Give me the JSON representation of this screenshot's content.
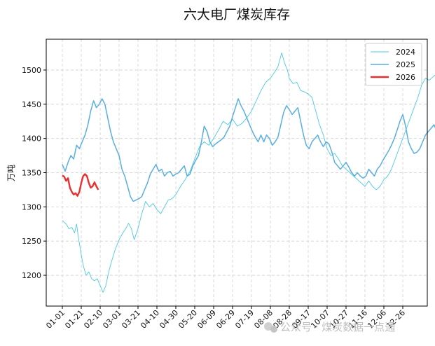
{
  "chart_data": {
    "type": "line",
    "title": "六大电厂煤炭库存",
    "xlabel": "",
    "ylabel": "万吨",
    "ylim": [
      1155,
      1545
    ],
    "yticks": [
      1200,
      1250,
      1300,
      1350,
      1400,
      1450,
      1500
    ],
    "xticks": [
      "01-01",
      "01-21",
      "02-10",
      "03-01",
      "03-21",
      "04-10",
      "04-30",
      "05-20",
      "06-09",
      "06-29",
      "07-19",
      "08-08",
      "08-28",
      "09-17",
      "10-07",
      "10-27",
      "11-16",
      "12-06",
      "12-26"
    ],
    "grid": true,
    "legend_position": "top-right",
    "series": [
      {
        "name": "2024",
        "color": "#4ec9e0",
        "points": [
          [
            0,
            1280
          ],
          [
            4,
            1275
          ],
          [
            7,
            1268
          ],
          [
            10,
            1270
          ],
          [
            13,
            1262
          ],
          [
            15,
            1275
          ],
          [
            17,
            1255
          ],
          [
            20,
            1230
          ],
          [
            22,
            1215
          ],
          [
            25,
            1200
          ],
          [
            28,
            1205
          ],
          [
            31,
            1195
          ],
          [
            34,
            1192
          ],
          [
            37,
            1195
          ],
          [
            40,
            1185
          ],
          [
            43,
            1175
          ],
          [
            46,
            1185
          ],
          [
            49,
            1205
          ],
          [
            52,
            1220
          ],
          [
            56,
            1238
          ],
          [
            60,
            1252
          ],
          [
            64,
            1262
          ],
          [
            67,
            1268
          ],
          [
            70,
            1276
          ],
          [
            73,
            1268
          ],
          [
            76,
            1252
          ],
          [
            80,
            1268
          ],
          [
            84,
            1290
          ],
          [
            88,
            1308
          ],
          [
            92,
            1300
          ],
          [
            96,
            1305
          ],
          [
            100,
            1296
          ],
          [
            104,
            1290
          ],
          [
            108,
            1300
          ],
          [
            112,
            1310
          ],
          [
            116,
            1312
          ],
          [
            120,
            1318
          ],
          [
            125,
            1330
          ],
          [
            130,
            1340
          ],
          [
            135,
            1352
          ],
          [
            140,
            1370
          ],
          [
            145,
            1388
          ],
          [
            150,
            1395
          ],
          [
            155,
            1390
          ],
          [
            160,
            1400
          ],
          [
            165,
            1412
          ],
          [
            170,
            1425
          ],
          [
            175,
            1420
          ],
          [
            180,
            1428
          ],
          [
            185,
            1418
          ],
          [
            190,
            1422
          ],
          [
            195,
            1430
          ],
          [
            200,
            1440
          ],
          [
            205,
            1455
          ],
          [
            210,
            1470
          ],
          [
            215,
            1482
          ],
          [
            220,
            1488
          ],
          [
            225,
            1498
          ],
          [
            228,
            1505
          ],
          [
            230,
            1515
          ],
          [
            232,
            1525
          ],
          [
            235,
            1510
          ],
          [
            238,
            1500
          ],
          [
            240,
            1488
          ],
          [
            244,
            1480
          ],
          [
            248,
            1482
          ],
          [
            252,
            1470
          ],
          [
            256,
            1468
          ],
          [
            260,
            1465
          ],
          [
            264,
            1460
          ],
          [
            268,
            1440
          ],
          [
            272,
            1420
          ],
          [
            276,
            1405
          ],
          [
            280,
            1385
          ],
          [
            284,
            1375
          ],
          [
            288,
            1378
          ],
          [
            292,
            1370
          ],
          [
            296,
            1360
          ],
          [
            300,
            1355
          ],
          [
            304,
            1350
          ],
          [
            308,
            1345
          ],
          [
            312,
            1340
          ],
          [
            316,
            1335
          ],
          [
            320,
            1330
          ],
          [
            324,
            1338
          ],
          [
            328,
            1330
          ],
          [
            332,
            1325
          ],
          [
            336,
            1330
          ],
          [
            340,
            1340
          ],
          [
            344,
            1345
          ],
          [
            348,
            1355
          ],
          [
            352,
            1370
          ],
          [
            356,
            1385
          ],
          [
            360,
            1400
          ],
          [
            364,
            1415
          ],
          [
            368,
            1430
          ],
          [
            372,
            1445
          ],
          [
            376,
            1460
          ],
          [
            380,
            1478
          ],
          [
            384,
            1488
          ],
          [
            388,
            1485
          ],
          [
            392,
            1490
          ],
          [
            396,
            1495
          ],
          [
            400,
            1500
          ],
          [
            404,
            1510
          ],
          [
            408,
            1500
          ],
          [
            412,
            1470
          ],
          [
            416,
            1455
          ],
          [
            420,
            1450
          ],
          [
            424,
            1445
          ],
          [
            428,
            1440
          ],
          [
            432,
            1438
          ],
          [
            436,
            1430
          ],
          [
            440,
            1425
          ],
          [
            444,
            1420
          ],
          [
            448,
            1410
          ],
          [
            452,
            1400
          ],
          [
            456,
            1395
          ],
          [
            460,
            1390
          ],
          [
            464,
            1395
          ],
          [
            468,
            1400
          ],
          [
            472,
            1385
          ],
          [
            476,
            1375
          ],
          [
            480,
            1365
          ]
        ]
      },
      {
        "name": "2025",
        "color": "#5aaee0",
        "points": [
          [
            0,
            1362
          ],
          [
            3,
            1352
          ],
          [
            6,
            1365
          ],
          [
            9,
            1375
          ],
          [
            12,
            1370
          ],
          [
            15,
            1390
          ],
          [
            18,
            1385
          ],
          [
            21,
            1395
          ],
          [
            24,
            1405
          ],
          [
            27,
            1420
          ],
          [
            30,
            1440
          ],
          [
            33,
            1455
          ],
          [
            36,
            1445
          ],
          [
            39,
            1450
          ],
          [
            42,
            1458
          ],
          [
            45,
            1450
          ],
          [
            48,
            1430
          ],
          [
            51,
            1410
          ],
          [
            54,
            1395
          ],
          [
            57,
            1385
          ],
          [
            60,
            1375
          ],
          [
            63,
            1355
          ],
          [
            66,
            1345
          ],
          [
            69,
            1330
          ],
          [
            72,
            1315
          ],
          [
            75,
            1308
          ],
          [
            78,
            1310
          ],
          [
            81,
            1312
          ],
          [
            84,
            1315
          ],
          [
            87,
            1325
          ],
          [
            90,
            1335
          ],
          [
            93,
            1348
          ],
          [
            96,
            1355
          ],
          [
            99,
            1362
          ],
          [
            102,
            1352
          ],
          [
            105,
            1355
          ],
          [
            108,
            1345
          ],
          [
            111,
            1350
          ],
          [
            114,
            1352
          ],
          [
            117,
            1345
          ],
          [
            120,
            1348
          ],
          [
            123,
            1350
          ],
          [
            126,
            1355
          ],
          [
            129,
            1360
          ],
          [
            132,
            1345
          ],
          [
            135,
            1348
          ],
          [
            138,
            1360
          ],
          [
            141,
            1368
          ],
          [
            144,
            1375
          ],
          [
            147,
            1395
          ],
          [
            150,
            1418
          ],
          [
            153,
            1410
          ],
          [
            156,
            1395
          ],
          [
            159,
            1388
          ],
          [
            162,
            1392
          ],
          [
            165,
            1395
          ],
          [
            168,
            1398
          ],
          [
            171,
            1402
          ],
          [
            174,
            1410
          ],
          [
            177,
            1418
          ],
          [
            180,
            1432
          ],
          [
            183,
            1445
          ],
          [
            186,
            1458
          ],
          [
            189,
            1448
          ],
          [
            192,
            1440
          ],
          [
            195,
            1430
          ],
          [
            198,
            1420
          ],
          [
            201,
            1410
          ],
          [
            204,
            1402
          ],
          [
            207,
            1395
          ],
          [
            210,
            1405
          ],
          [
            213,
            1395
          ],
          [
            216,
            1405
          ],
          [
            219,
            1400
          ],
          [
            222,
            1390
          ],
          [
            225,
            1395
          ],
          [
            228,
            1402
          ],
          [
            231,
            1420
          ],
          [
            234,
            1438
          ],
          [
            237,
            1448
          ],
          [
            240,
            1442
          ],
          [
            243,
            1435
          ],
          [
            246,
            1440
          ],
          [
            249,
            1445
          ],
          [
            252,
            1425
          ],
          [
            255,
            1405
          ],
          [
            258,
            1390
          ],
          [
            261,
            1385
          ],
          [
            264,
            1395
          ],
          [
            267,
            1400
          ],
          [
            270,
            1405
          ],
          [
            273,
            1395
          ],
          [
            276,
            1388
          ],
          [
            279,
            1395
          ],
          [
            282,
            1392
          ],
          [
            285,
            1380
          ],
          [
            288,
            1365
          ],
          [
            291,
            1360
          ],
          [
            294,
            1355
          ],
          [
            297,
            1360
          ],
          [
            300,
            1365
          ],
          [
            303,
            1358
          ],
          [
            306,
            1350
          ],
          [
            309,
            1345
          ],
          [
            312,
            1350
          ],
          [
            315,
            1345
          ],
          [
            318,
            1342
          ],
          [
            321,
            1345
          ],
          [
            324,
            1355
          ],
          [
            327,
            1350
          ],
          [
            330,
            1345
          ],
          [
            333,
            1355
          ],
          [
            336,
            1360
          ],
          [
            339,
            1368
          ],
          [
            342,
            1375
          ],
          [
            345,
            1382
          ],
          [
            348,
            1390
          ],
          [
            351,
            1400
          ],
          [
            354,
            1412
          ],
          [
            357,
            1425
          ],
          [
            360,
            1435
          ],
          [
            363,
            1418
          ],
          [
            366,
            1395
          ],
          [
            369,
            1385
          ],
          [
            372,
            1378
          ],
          [
            375,
            1380
          ],
          [
            378,
            1385
          ],
          [
            381,
            1395
          ],
          [
            384,
            1405
          ],
          [
            387,
            1410
          ],
          [
            390,
            1415
          ],
          [
            393,
            1420
          ],
          [
            396,
            1410
          ],
          [
            399,
            1405
          ],
          [
            402,
            1400
          ],
          [
            405,
            1410
          ],
          [
            408,
            1418
          ],
          [
            411,
            1425
          ],
          [
            414,
            1428
          ],
          [
            417,
            1435
          ],
          [
            420,
            1445
          ],
          [
            423,
            1450
          ],
          [
            426,
            1452
          ],
          [
            429,
            1445
          ],
          [
            432,
            1438
          ],
          [
            435,
            1440
          ],
          [
            438,
            1445
          ],
          [
            441,
            1410
          ],
          [
            444,
            1385
          ],
          [
            447,
            1378
          ],
          [
            450,
            1372
          ],
          [
            453,
            1360
          ],
          [
            456,
            1355
          ],
          [
            459,
            1352
          ],
          [
            462,
            1348
          ],
          [
            465,
            1342
          ],
          [
            468,
            1335
          ],
          [
            471,
            1340
          ],
          [
            474,
            1338
          ]
        ]
      },
      {
        "name": "2026",
        "color": "#e8302e",
        "points": [
          [
            0,
            1346
          ],
          [
            2,
            1344
          ],
          [
            4,
            1338
          ],
          [
            6,
            1342
          ],
          [
            8,
            1328
          ],
          [
            10,
            1322
          ],
          [
            12,
            1318
          ],
          [
            14,
            1320
          ],
          [
            16,
            1316
          ],
          [
            18,
            1322
          ],
          [
            20,
            1335
          ],
          [
            22,
            1345
          ],
          [
            24,
            1348
          ],
          [
            26,
            1345
          ],
          [
            28,
            1335
          ],
          [
            30,
            1328
          ],
          [
            32,
            1330
          ],
          [
            34,
            1336
          ],
          [
            36,
            1330
          ],
          [
            38,
            1325
          ]
        ]
      }
    ]
  },
  "watermark": {
    "text": "公众号 · 煤炭数据一点通",
    "icon": "wechat-icon"
  }
}
